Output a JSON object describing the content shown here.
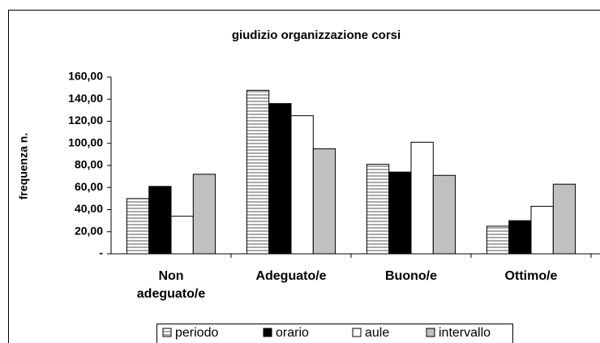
{
  "chart_data": {
    "type": "bar",
    "title": "giudizio organizzazione corsi",
    "y_label": "frequenza n.",
    "categories": [
      "Non adeguato/e",
      "Adeguato/e",
      "Buono/e",
      "Ottimo/e"
    ],
    "series": [
      {
        "name": "periodo",
        "color": "#ffffff",
        "pattern": "horizontal-stripes",
        "values": [
          50,
          148,
          81,
          25
        ]
      },
      {
        "name": "orario",
        "color": "#000000",
        "values": [
          61,
          136,
          74,
          30
        ]
      },
      {
        "name": "aule",
        "color": "#ffffff",
        "values": [
          34,
          125,
          101,
          43
        ]
      },
      {
        "name": "intervallo",
        "color": "#c0c0c0",
        "values": [
          72,
          95,
          71,
          63
        ]
      }
    ],
    "ylim": [
      0,
      160
    ],
    "yticks": [
      {
        "value": 0,
        "label": "-"
      },
      {
        "value": 20,
        "label": "20,00"
      },
      {
        "value": 40,
        "label": "40,00"
      },
      {
        "value": 60,
        "label": "60,00"
      },
      {
        "value": 80,
        "label": "80,00"
      },
      {
        "value": 100,
        "label": "100,00"
      },
      {
        "value": 120,
        "label": "120,00"
      },
      {
        "value": 140,
        "label": "140,00"
      },
      {
        "value": 160,
        "label": "160,00"
      }
    ],
    "legend": "bottom"
  }
}
